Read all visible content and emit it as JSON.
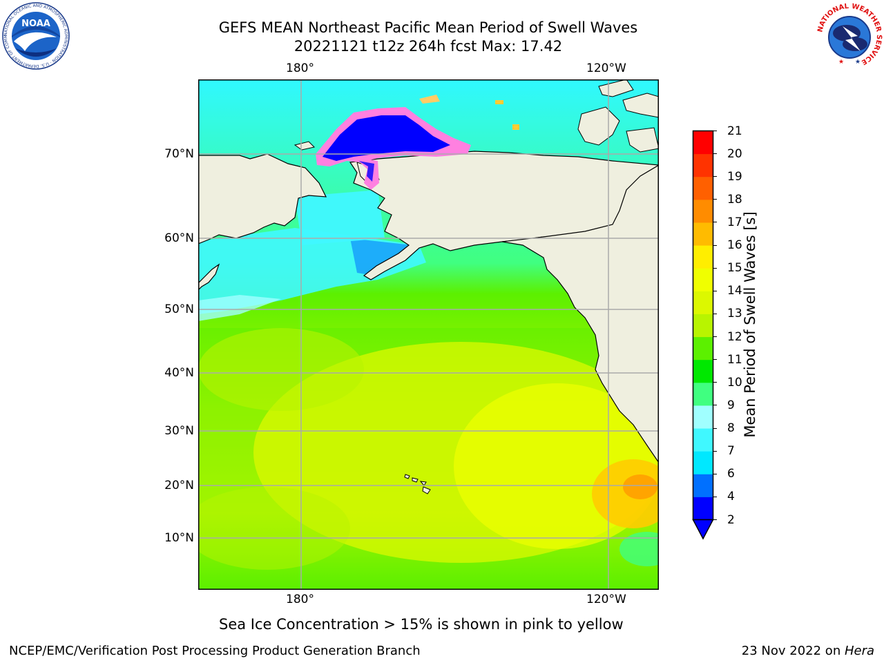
{
  "header": {
    "title_line1": "GEFS MEAN Northeast Pacific Mean Period of Swell Waves",
    "title_line2": "20221121 t12z 264h fcst   Max: 17.42"
  },
  "logos": {
    "noaa": {
      "text": "NOAA",
      "ring_text": "NATIONAL OCEANIC AND ATMOSPHERIC ADMINISTRATION · U.S. DEPARTMENT OF COMMERCE"
    },
    "nws": {
      "ring_text": "NATIONAL WEATHER SERVICE"
    }
  },
  "map": {
    "x_ticks": [
      "180°",
      "120°W"
    ],
    "y_ticks": [
      "70°N",
      "60°N",
      "50°N",
      "40°N",
      "30°N",
      "20°N",
      "10°N"
    ],
    "land_color": "#efefdf",
    "ice_note": "Sea Ice Concentration > 15% is shown in pink to yellow"
  },
  "colorbar": {
    "label": "Mean Period of Swell Waves [s]",
    "ticks": [
      "2",
      "4",
      "6",
      "7",
      "8",
      "9",
      "10",
      "11",
      "12",
      "13",
      "14",
      "15",
      "16",
      "17",
      "18",
      "19",
      "20",
      "21"
    ],
    "colors": [
      "#0000ff",
      "#0070ff",
      "#00e8ff",
      "#40f8ff",
      "#a0ffff",
      "#40ff80",
      "#00e800",
      "#5cf000",
      "#b8f400",
      "#dcf800",
      "#f0ff00",
      "#ffee00",
      "#ffbb00",
      "#ff8c00",
      "#ff6000",
      "#ff3300",
      "#ff0000"
    ]
  },
  "footer": {
    "left": "NCEP/EMC/Verification Post Processing Product Generation Branch",
    "date": "23 Nov 2022 on ",
    "machine": "Hera"
  }
}
